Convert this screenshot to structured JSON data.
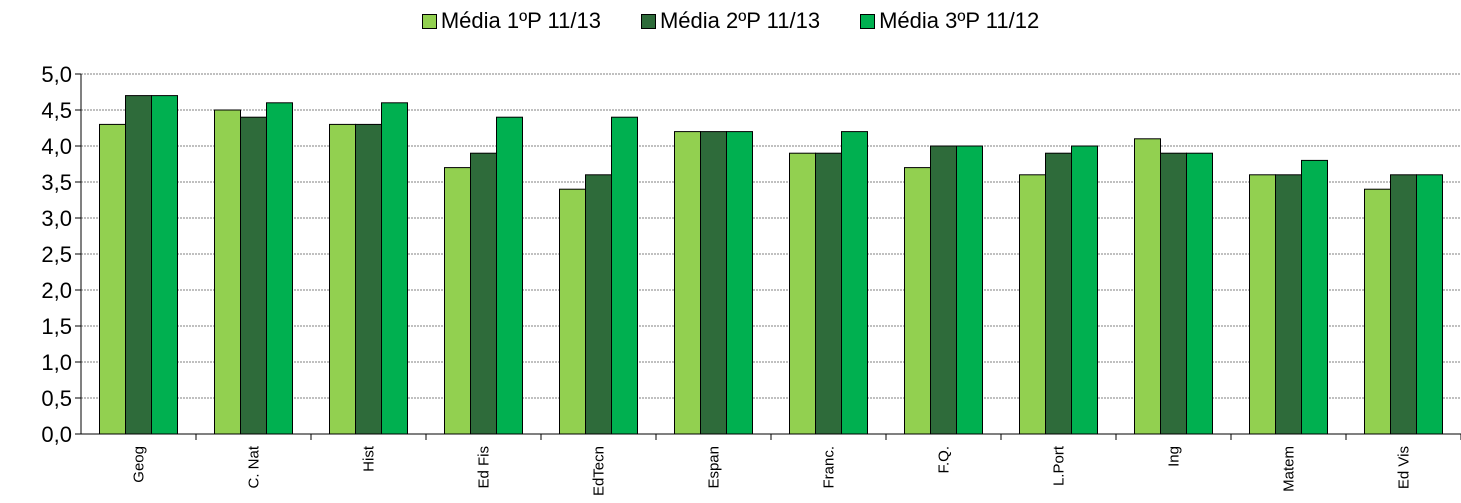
{
  "chart_data": {
    "type": "bar",
    "title": "",
    "xlabel": "",
    "ylabel": "",
    "ylim": [
      0,
      5
    ],
    "y_ticks": [
      "0,0",
      "0,5",
      "1,0",
      "1,5",
      "2,0",
      "2,5",
      "3,0",
      "3,5",
      "4,0",
      "4,5",
      "5,0"
    ],
    "grid": true,
    "legend_position": "top-center",
    "categories": [
      "Geog",
      "C. Nat",
      "Hist",
      "Ed Fis",
      "EdTecn",
      "Espan",
      "Franc.",
      "F.Q.",
      "L.Port",
      "Ing",
      "Matem",
      "Ed Vis"
    ],
    "series": [
      {
        "name": "Média 1ºP 11/13",
        "color": "#92D050",
        "values": [
          4.3,
          4.5,
          4.3,
          3.7,
          3.4,
          4.2,
          3.9,
          3.7,
          3.6,
          4.1,
          3.6,
          3.4
        ]
      },
      {
        "name": "Média 2ºP 11/13",
        "color": "#2E6B3A",
        "values": [
          4.7,
          4.4,
          4.3,
          3.9,
          3.6,
          4.2,
          3.9,
          4.0,
          3.9,
          3.9,
          3.6,
          3.6
        ]
      },
      {
        "name": "Média 3ºP 11/12",
        "color": "#00B050",
        "values": [
          4.7,
          4.6,
          4.6,
          4.4,
          4.4,
          4.2,
          4.2,
          4.0,
          4.0,
          3.9,
          3.8,
          3.6
        ]
      }
    ]
  }
}
